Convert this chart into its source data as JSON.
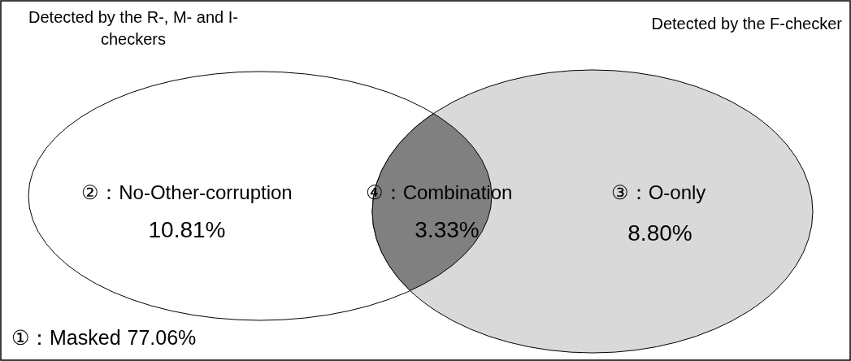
{
  "chart_data": {
    "type": "other",
    "categories": [
      "①：Masked",
      "②：No-Other-corruption",
      "③：O-only",
      "④：Combination"
    ],
    "values": [
      77.06,
      10.81,
      8.8,
      3.33
    ],
    "value_labels": [
      "77.06%",
      "10.81%",
      "8.80%",
      "3.33%"
    ],
    "colors": [
      "#ffffff",
      "#ffffff",
      "#d9d9d9",
      "#808080"
    ],
    "annotations": [
      "Detected by the R-, M- and I-checkers",
      "Detected by the F-checker"
    ]
  }
}
